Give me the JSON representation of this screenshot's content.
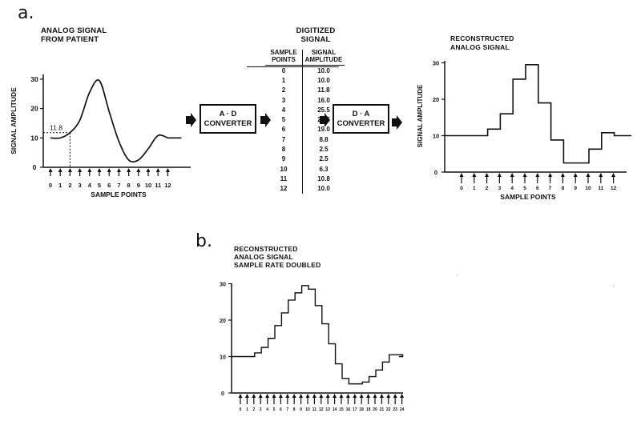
{
  "panel_a": {
    "letter": "a.",
    "analog": {
      "title": "ANALOG SIGNAL\nFROM PATIENT",
      "ylabel": "SIGNAL AMPLITUDE",
      "xlabel": "SAMPLE POINTS",
      "yticks": [
        "0",
        "10",
        "20",
        "30"
      ],
      "xticks": [
        "0",
        "1",
        "2",
        "3",
        "4",
        "5",
        "6",
        "7",
        "8",
        "9",
        "10",
        "11",
        "12"
      ],
      "annotation": "11.8"
    },
    "converters": {
      "ad": [
        "A · D",
        "CONVERTER"
      ],
      "da": [
        "D · A",
        "CONVERTER"
      ]
    },
    "digitized": {
      "title": "DIGITIZED\nSIGNAL",
      "col1_header": "SAMPLE\nPOINTS",
      "col2_header": "SIGNAL\nAMPLITUDE",
      "rows": [
        [
          "0",
          "10.0"
        ],
        [
          "1",
          "10.0"
        ],
        [
          "2",
          "11.8"
        ],
        [
          "3",
          "16.0"
        ],
        [
          "4",
          "25.5"
        ],
        [
          "5",
          "29.5"
        ],
        [
          "6",
          "19.0"
        ],
        [
          "7",
          "8.8"
        ],
        [
          "8",
          "2.5"
        ],
        [
          "9",
          "2.5"
        ],
        [
          "10",
          "6.3"
        ],
        [
          "11",
          "10.8"
        ],
        [
          "12",
          "10.0"
        ]
      ]
    },
    "reconstructed": {
      "title": "RECONSTRUCTED\nANALOG SIGNAL",
      "ylabel": "SIGNAL AMPLITUDE",
      "xlabel": "SAMPLE POINTS",
      "yticks": [
        "0",
        "10",
        "20",
        "30"
      ],
      "xticks": [
        "0",
        "1",
        "2",
        "3",
        "4",
        "5",
        "6",
        "7",
        "8",
        "9",
        "10",
        "11",
        "12"
      ]
    }
  },
  "panel_b": {
    "letter": "b.",
    "title": "RECONSTRUCTED\nANALOG SIGNAL\nSAMPLE RATE DOUBLED",
    "yticks": [
      "0",
      "10",
      "20",
      "30"
    ],
    "xticks": [
      "0",
      "1",
      "2",
      "3",
      "4",
      "5",
      "6",
      "7",
      "8",
      "9",
      "10",
      "11",
      "12",
      "13",
      "14",
      "15",
      "16",
      "17",
      "18",
      "19",
      "20",
      "21",
      "22",
      "23",
      "24"
    ]
  },
  "chart_data": [
    {
      "type": "line",
      "title": "ANALOG SIGNAL FROM PATIENT",
      "xlabel": "SAMPLE POINTS",
      "ylabel": "SIGNAL AMPLITUDE",
      "x": [
        0,
        1,
        2,
        3,
        4,
        5,
        6,
        7,
        8,
        9,
        10,
        11,
        12
      ],
      "values": [
        10.0,
        10.0,
        11.8,
        16.0,
        25.5,
        29.5,
        19.0,
        8.8,
        2.5,
        2.5,
        6.3,
        10.8,
        10.0
      ],
      "xlim": [
        0,
        12
      ],
      "ylim": [
        0,
        30
      ]
    },
    {
      "type": "line",
      "title": "RECONSTRUCTED ANALOG SIGNAL",
      "xlabel": "SAMPLE POINTS",
      "ylabel": "SIGNAL AMPLITUDE",
      "x": [
        0,
        1,
        2,
        3,
        4,
        5,
        6,
        7,
        8,
        9,
        10,
        11,
        12
      ],
      "values": [
        10.0,
        10.0,
        11.8,
        16.0,
        25.5,
        29.5,
        19.0,
        8.8,
        2.5,
        2.5,
        6.3,
        10.8,
        10.0
      ],
      "step": true,
      "xlim": [
        0,
        12
      ],
      "ylim": [
        0,
        30
      ]
    },
    {
      "type": "line",
      "title": "RECONSTRUCTED ANALOG SIGNAL SAMPLE RATE DOUBLED",
      "x": [
        0,
        1,
        2,
        3,
        4,
        5,
        6,
        7,
        8,
        9,
        10,
        11,
        12,
        13,
        14,
        15,
        16,
        17,
        18,
        19,
        20,
        21,
        22,
        23,
        24
      ],
      "values": [
        10,
        10,
        11,
        12.5,
        15,
        18.5,
        22,
        25.5,
        27.5,
        29.5,
        28.5,
        24,
        19,
        13.5,
        8,
        4,
        2.5,
        2.5,
        3,
        4.5,
        6.3,
        8.5,
        10.5,
        10.5,
        10
      ],
      "step": true,
      "xlim": [
        0,
        24
      ],
      "ylim": [
        0,
        30
      ]
    }
  ]
}
